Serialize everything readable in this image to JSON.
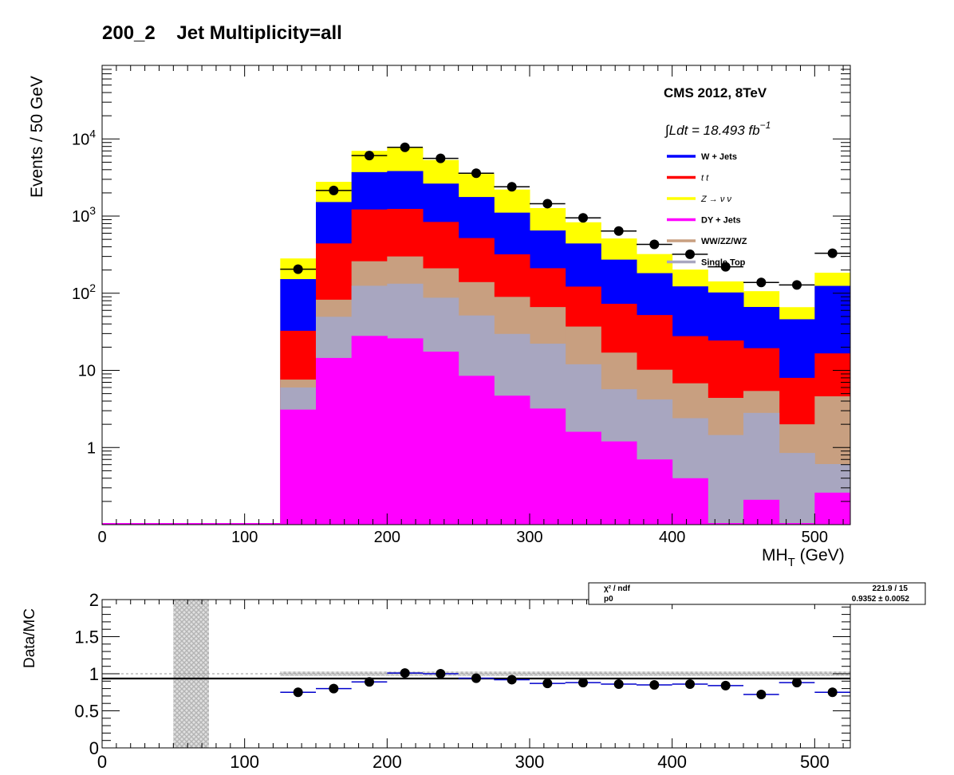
{
  "title": "200_2    Jet Multiplicity=all",
  "chart_data": {
    "type": "bar",
    "stacked": true,
    "y_scale": "log",
    "xlabel_main": "MH",
    "xlabel_sub": "T",
    "xlabel_unit": " (GeV)",
    "ylabel": "Events / 50 GeV",
    "xlim": [
      0,
      525
    ],
    "ylim": [
      0.1,
      90000
    ],
    "x_ticks": [
      "0",
      "100",
      "200",
      "300",
      "400",
      "500"
    ],
    "y_ticks": [
      {
        "base": "10",
        "exp": "4"
      },
      {
        "base": "10",
        "exp": "3"
      },
      {
        "base": "10",
        "exp": "2"
      },
      {
        "base": "10",
        "exp": ""
      },
      {
        "base": "1",
        "exp": ""
      }
    ],
    "annotation_experiment": "CMS 2012, 8TeV",
    "annotation_lumi": "∫Ldt = 18.493 fb",
    "annotation_lumi_exp": "−1",
    "bin_edges": [
      0,
      125,
      150,
      175,
      200,
      225,
      250,
      275,
      300,
      325,
      350,
      375,
      400,
      425,
      450,
      475,
      500,
      525
    ],
    "series": [
      {
        "name": "DY + Jets",
        "color": "#ff00ff",
        "values": [
          0.1,
          3.1,
          14.5,
          28,
          26,
          17.5,
          8.5,
          4.7,
          3.2,
          1.6,
          1.2,
          0.7,
          0.4,
          0.1,
          0.21,
          0.1,
          0.26
        ]
      },
      {
        "name": "Single Top",
        "color": "#a8a6c0",
        "values": [
          0,
          2.9,
          35,
          97,
          107,
          70,
          43,
          25,
          19,
          10.4,
          4.5,
          3.5,
          2.0,
          1.35,
          2.6,
          0.75,
          0.35
        ]
      },
      {
        "name": "WW/ZZ/WZ",
        "color": "#c89f80",
        "values": [
          0,
          1.6,
          33,
          135,
          167,
          123,
          88,
          60,
          44,
          25,
          11.3,
          6,
          4.4,
          2.95,
          2.6,
          1.15,
          4
        ]
      },
      {
        "name": "t t",
        "color": "#ff0000",
        "values": [
          0,
          25,
          360,
          960,
          940,
          630,
          380,
          230,
          145,
          85,
          56,
          42,
          21,
          20,
          14,
          6,
          12
        ]
      },
      {
        "name": "W + Jets",
        "color": "#0000ff",
        "values": [
          0,
          120,
          1080,
          2500,
          2600,
          1800,
          1250,
          790,
          440,
          320,
          200,
          130,
          95,
          78,
          47,
          38,
          108
        ]
      },
      {
        "name": "Z → ν  ν",
        "color": "#ffff00",
        "values": [
          0,
          130,
          1260,
          3300,
          3900,
          2700,
          1750,
          1100,
          620,
          390,
          240,
          140,
          80,
          40,
          40,
          20,
          60
        ]
      }
    ],
    "legend": [
      {
        "label": "W + Jets",
        "color": "#0000ff",
        "style": "bold"
      },
      {
        "label": "t  t",
        "color": "#ff0000",
        "style": "italic"
      },
      {
        "label": "Z → ν  ν",
        "color": "#ffff00",
        "style": "italic"
      },
      {
        "label": "DY + Jets",
        "color": "#ff00ff",
        "style": "bold"
      },
      {
        "label": "WW/ZZ/WZ",
        "color": "#c89f80",
        "style": "bold"
      },
      {
        "label": "Single Top",
        "color": "#a8a6c0",
        "style": "bold"
      }
    ],
    "data_points": {
      "x": [
        137.5,
        162.5,
        187.5,
        212.5,
        237.5,
        262.5,
        287.5,
        312.5,
        337.5,
        362.5,
        387.5,
        412.5,
        437.5,
        462.5,
        487.5,
        512.5
      ],
      "y": [
        205,
        2150,
        6100,
        7800,
        5600,
        3600,
        2400,
        1450,
        950,
        640,
        430,
        320,
        220,
        138,
        128,
        330
      ]
    },
    "ratio": {
      "ylabel": "Data/MC",
      "ylim": [
        0,
        2
      ],
      "y_ticks": [
        "0",
        "0.5",
        "1",
        "1.5",
        "2"
      ],
      "x_ticks": [
        "0",
        "100",
        "200",
        "300",
        "400",
        "500"
      ],
      "x": [
        137.5,
        162.5,
        187.5,
        212.5,
        237.5,
        262.5,
        287.5,
        312.5,
        337.5,
        362.5,
        387.5,
        412.5,
        437.5,
        462.5,
        487.5,
        512.5
      ],
      "y": [
        0.75,
        0.8,
        0.89,
        1.01,
        1.0,
        0.94,
        0.92,
        0.87,
        0.88,
        0.86,
        0.85,
        0.86,
        0.84,
        0.72,
        0.88,
        0.75
      ],
      "fit_value": 0.9352,
      "fit_box": {
        "row1_label": "χ² / ndf",
        "row1_value": "221.9 / 15",
        "row2_label": "p0",
        "row2_value": "0.9352 ± 0.0052"
      },
      "uncertainty_band_x": [
        50,
        75
      ]
    }
  }
}
